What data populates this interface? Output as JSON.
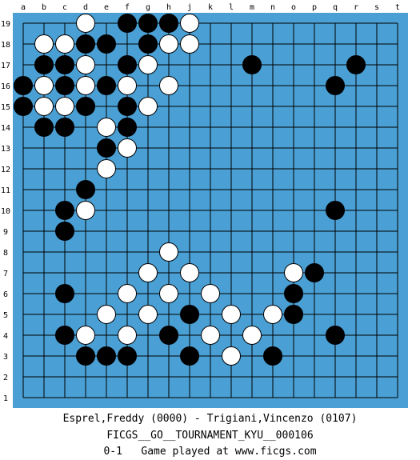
{
  "board": {
    "size": 19,
    "board_color": "#4a9fd4",
    "line_color": "#000000",
    "columns": [
      "a",
      "b",
      "c",
      "d",
      "e",
      "f",
      "g",
      "h",
      "j",
      "k",
      "l",
      "m",
      "n",
      "o",
      "p",
      "q",
      "r",
      "s",
      "t"
    ],
    "rows": [
      "19",
      "18",
      "17",
      "16",
      "15",
      "14",
      "13",
      "12",
      "11",
      "10",
      "9",
      "8",
      "7",
      "6",
      "5",
      "4",
      "3",
      "2",
      "1"
    ],
    "black_stones": [
      "f19",
      "g19",
      "h19",
      "d18",
      "e18",
      "g18",
      "b17",
      "c17",
      "f17",
      "m17",
      "r17",
      "a16",
      "c16",
      "e16",
      "q16",
      "a15",
      "d15",
      "f15",
      "b14",
      "c14",
      "f14",
      "e13",
      "d11",
      "c10",
      "q10",
      "c9",
      "p7",
      "c6",
      "o6",
      "j5",
      "o5",
      "c4",
      "h4",
      "q4",
      "d3",
      "e3",
      "f3",
      "j3",
      "n3"
    ],
    "white_stones": [
      "d19",
      "j19",
      "b18",
      "c18",
      "h18",
      "j18",
      "d17",
      "g17",
      "b16",
      "d16",
      "f16",
      "h16",
      "b15",
      "c15",
      "g15",
      "e14",
      "f13",
      "e12",
      "d10",
      "h8",
      "g7",
      "j7",
      "o7",
      "f6",
      "h6",
      "k6",
      "e5",
      "g5",
      "l5",
      "n5",
      "d4",
      "f4",
      "k4",
      "m4",
      "l3"
    ]
  },
  "caption": {
    "players": "Esprel,Freddy (0000) - Trigiani,Vincenzo (0107)",
    "tournament": "FICGS__GO__TOURNAMENT_KYU__000106",
    "result": "0-1",
    "site": "Game played at www.ficgs.com"
  }
}
